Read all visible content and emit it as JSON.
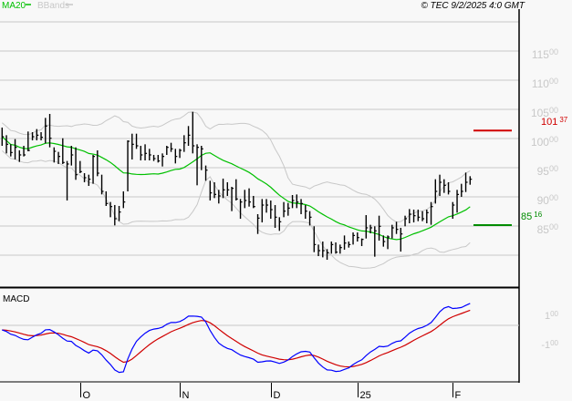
{
  "header": {
    "legend": [
      {
        "label": "MA20",
        "color": "#00c000"
      },
      {
        "label": "BBands",
        "color": "#c8c8c8"
      }
    ],
    "copyright": "© TEC 9/2/2025 4:0 GMT"
  },
  "chart_data": [
    {
      "type": "ohlc",
      "panel": "price",
      "columns": [
        "high",
        "low",
        "close"
      ],
      "bars": [
        [
          10188,
          9875,
          10031
        ],
        [
          10057,
          9745,
          9901
        ],
        [
          9901,
          9693,
          9760
        ],
        [
          9990,
          9641,
          9849
        ],
        [
          9797,
          9599,
          9719
        ],
        [
          9875,
          9693,
          9719
        ],
        [
          10120,
          9781,
          9797
        ],
        [
          10109,
          9969,
          10031
        ],
        [
          10162,
          9969,
          10057
        ],
        [
          10109,
          9969,
          10021
        ],
        [
          10354,
          9917,
          10214
        ],
        [
          10422,
          9849,
          10005
        ],
        [
          9849,
          9589,
          9781
        ],
        [
          9771,
          9563,
          9693
        ],
        [
          10005,
          9563,
          9589
        ],
        [
          9615,
          8938,
          9563
        ],
        [
          9875,
          9537,
          9719
        ],
        [
          9849,
          9292,
          9380
        ],
        [
          9615,
          9406,
          9432
        ],
        [
          9406,
          9250,
          9328
        ],
        [
          9380,
          9188,
          9302
        ],
        [
          9719,
          9224,
          9693
        ],
        [
          9797,
          9354,
          9406
        ],
        [
          9380,
          9042,
          9094
        ],
        [
          9094,
          8844,
          8886
        ],
        [
          8912,
          8651,
          8833
        ],
        [
          8860,
          8511,
          8625
        ],
        [
          8844,
          8584,
          8740
        ],
        [
          9094,
          8807,
          8912
        ],
        [
          9969,
          9094,
          9953
        ],
        [
          10083,
          9641,
          9901
        ],
        [
          10083,
          9823,
          9875
        ],
        [
          9875,
          9625,
          9719
        ],
        [
          9901,
          9625,
          9745
        ],
        [
          9823,
          9625,
          9719
        ],
        [
          9719,
          9615,
          9656
        ],
        [
          9719,
          9589,
          9615
        ],
        [
          9745,
          9521,
          9693
        ],
        [
          9875,
          9719,
          9849
        ],
        [
          9927,
          9771,
          9823
        ],
        [
          9823,
          9573,
          9693
        ],
        [
          9823,
          9667,
          9797
        ],
        [
          10057,
          9771,
          9927
        ],
        [
          10214,
          9875,
          10057
        ],
        [
          10458,
          9745,
          9875
        ],
        [
          9901,
          9198,
          9849
        ],
        [
          9875,
          9458,
          9823
        ],
        [
          9537,
          9276,
          9458
        ],
        [
          9276,
          8938,
          9068
        ],
        [
          9250,
          8979,
          9042
        ],
        [
          9120,
          8886,
          9016
        ],
        [
          9313,
          8979,
          9120
        ],
        [
          9250,
          9016,
          9120
        ],
        [
          9172,
          8755,
          9146
        ],
        [
          9302,
          8938,
          8964
        ],
        [
          8964,
          8625,
          8912
        ],
        [
          9120,
          8807,
          8938
        ],
        [
          9146,
          8833,
          8912
        ],
        [
          9016,
          8807,
          8833
        ],
        [
          8703,
          8364,
          8635
        ],
        [
          8963,
          8562,
          8859
        ],
        [
          8963,
          8729,
          8859
        ],
        [
          8937,
          8625,
          8781
        ],
        [
          8859,
          8469,
          8651
        ],
        [
          8651,
          8417,
          8573
        ],
        [
          8911,
          8651,
          8755
        ],
        [
          8896,
          8677,
          8807
        ],
        [
          9031,
          8807,
          8937
        ],
        [
          9041,
          8807,
          8911
        ],
        [
          8963,
          8703,
          8885
        ],
        [
          8859,
          8625,
          8755
        ],
        [
          8755,
          8510,
          8651
        ],
        [
          8495,
          8052,
          8182
        ],
        [
          8182,
          7984,
          8078
        ],
        [
          8234,
          7963,
          8078
        ],
        [
          8104,
          7922,
          8042
        ],
        [
          8234,
          8026,
          8182
        ],
        [
          8219,
          8026,
          8052
        ],
        [
          8182,
          8026,
          8130
        ],
        [
          8338,
          8094,
          8208
        ],
        [
          8234,
          8130,
          8182
        ],
        [
          8390,
          8182,
          8338
        ],
        [
          8390,
          8234,
          8302
        ],
        [
          8286,
          8156,
          8271
        ],
        [
          8687,
          8286,
          8469
        ],
        [
          8521,
          8375,
          8469
        ],
        [
          8495,
          7974,
          8417
        ],
        [
          8677,
          8250,
          8495
        ],
        [
          8338,
          8146,
          8234
        ],
        [
          8338,
          8104,
          8312
        ],
        [
          8521,
          8286,
          8469
        ],
        [
          8573,
          8364,
          8443
        ],
        [
          8469,
          8062,
          8364
        ],
        [
          8677,
          8495,
          8625
        ],
        [
          8791,
          8547,
          8703
        ],
        [
          8781,
          8562,
          8677
        ],
        [
          8781,
          8583,
          8651
        ],
        [
          8755,
          8583,
          8625
        ],
        [
          8781,
          8547,
          8729
        ],
        [
          8911,
          8521,
          8833
        ],
        [
          9302,
          8885,
          9094
        ],
        [
          9380,
          9015,
          9250
        ],
        [
          9302,
          9068,
          9198
        ],
        [
          9250,
          9041,
          9094
        ],
        [
          8911,
          8625,
          8859
        ],
        [
          9120,
          8729,
          9041
        ],
        [
          9224,
          9000,
          9094
        ],
        [
          9416,
          9083,
          9250
        ],
        [
          9354,
          9208,
          9302
        ]
      ],
      "overlays": [
        "MA20",
        "BBands"
      ],
      "y_axis": {
        "range": [
          7500,
          12250
        ],
        "ticks": [
          {
            "value": 11500,
            "main": "115",
            "sup": "00"
          },
          {
            "value": 11000,
            "main": "110",
            "sup": "00"
          },
          {
            "value": 10500,
            "main": "105",
            "sup": "00"
          },
          {
            "value": 10000,
            "main": "100",
            "sup": "00"
          },
          {
            "value": 9500,
            "main": "95",
            "sup": "00"
          },
          {
            "value": 9000,
            "main": "90",
            "sup": "00"
          },
          {
            "value": 8500,
            "main": "85",
            "sup": "00"
          }
        ],
        "gridlines": [
          12000,
          11500,
          11000,
          10500,
          10000,
          9500,
          9000,
          8500,
          8000
        ]
      },
      "levels": [
        {
          "value": 10137,
          "main": "101",
          "sup": "37",
          "color": "#d00000"
        },
        {
          "value": 8516,
          "main": "85",
          "sup": "16",
          "color": "#008c00"
        }
      ],
      "x_axis": {
        "ticks": [
          {
            "label": "O",
            "bar_index": 18
          },
          {
            "label": "N",
            "bar_index": 41
          },
          {
            "label": "D",
            "bar_index": 62
          },
          {
            "label": "25",
            "bar_index": 82
          },
          {
            "label": "F",
            "bar_index": 104
          }
        ]
      },
      "grid": true
    },
    {
      "type": "line",
      "panel": "indicator",
      "title": "MACD",
      "series_colors": {
        "macd": "#0000ff",
        "signal": "#d00000"
      },
      "y_axis": {
        "ticks": [
          {
            "value": 100,
            "main": "1",
            "sup": "00"
          },
          {
            "value": -100,
            "main": "-1",
            "sup": "00"
          }
        ]
      }
    }
  ]
}
